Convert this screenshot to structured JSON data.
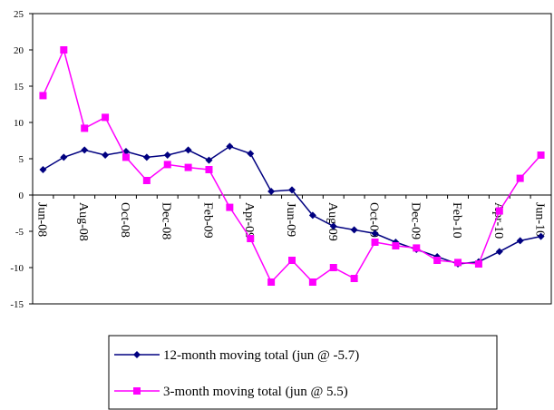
{
  "chart_data": {
    "type": "line",
    "categories": [
      "Jun-08",
      null,
      "Aug-08",
      null,
      "Oct-08",
      null,
      "Dec-08",
      null,
      "Feb-09",
      null,
      "Apr-09",
      null,
      "Jun-09",
      null,
      "Aug-09",
      null,
      "Oct-09",
      null,
      "Dec-09",
      null,
      "Feb-10",
      null,
      "Apr-10",
      null,
      "Jun-10"
    ],
    "series": [
      {
        "name": "12-month moving total (jun @ -5.7)",
        "color": "#000080",
        "marker": "diamond",
        "values": [
          3.5,
          5.2,
          6.2,
          5.5,
          6.0,
          5.2,
          5.5,
          6.2,
          4.8,
          6.7,
          5.7,
          0.5,
          0.7,
          -2.8,
          -4.3,
          -4.8,
          -5.3,
          -6.5,
          -7.5,
          -8.5,
          -9.5,
          -9.2,
          -7.8,
          -6.3,
          -5.7
        ]
      },
      {
        "name": "3-month moving total (jun @ 5.5)",
        "color": "#ff00ff",
        "marker": "square",
        "values": [
          13.7,
          20.0,
          9.2,
          10.7,
          5.2,
          2.0,
          4.2,
          3.8,
          3.5,
          -1.7,
          -6.0,
          -12.0,
          -9.0,
          -12.0,
          -10.0,
          -11.5,
          -6.5,
          -7.0,
          -7.3,
          -9.0,
          -9.3,
          -9.5,
          -2.2,
          2.3,
          5.5
        ]
      }
    ],
    "ylim": [
      -15,
      25
    ],
    "yticks": [
      -15,
      -10,
      -5,
      0,
      5,
      10,
      15,
      20,
      25
    ],
    "grid": false,
    "legend": "bottom"
  }
}
